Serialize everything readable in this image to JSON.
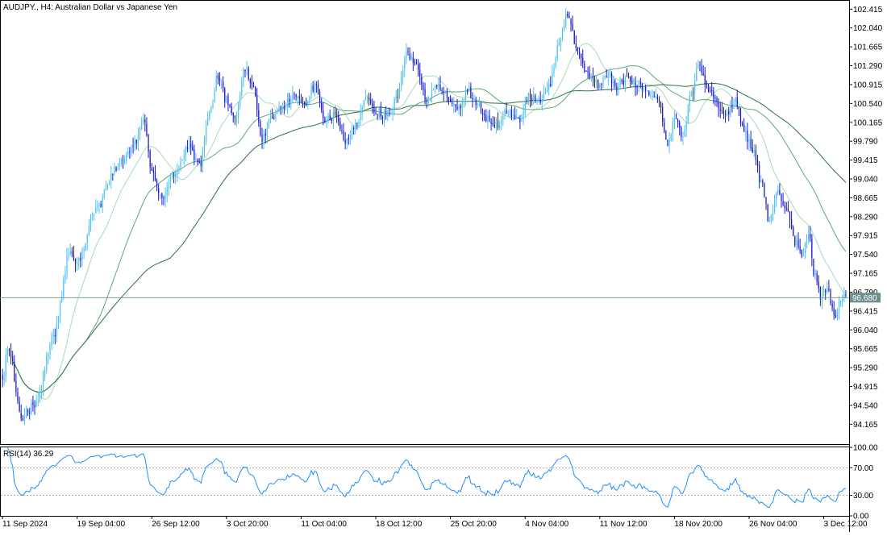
{
  "chart_data": {
    "type": "candlestick",
    "title": "AUDJPY., H4:  Australian Dollar vs Japanese Yen",
    "price_axis": {
      "ticks": [
        "102.415",
        "102.040",
        "101.665",
        "101.290",
        "100.915",
        "100.540",
        "100.165",
        "99.790",
        "99.415",
        "99.040",
        "98.665",
        "98.290",
        "97.915",
        "97.540",
        "97.165",
        "96.790",
        "96.415",
        "96.040",
        "95.665",
        "95.290",
        "94.915",
        "94.540",
        "94.165"
      ],
      "ylim": [
        93.77,
        102.58
      ]
    },
    "current_price": "96.680",
    "time_axis": {
      "ticks": [
        "11 Sep 2024",
        "19 Sep 04:00",
        "26 Sep 12:00",
        "3 Oct 20:00",
        "11 Oct 04:00",
        "18 Oct 12:00",
        "25 Oct 20:00",
        "4 Nov 04:00",
        "11 Nov 12:00",
        "18 Nov 20:00",
        "26 Nov 04:00",
        "3 Dec 12:00"
      ],
      "tick_bars": [
        0,
        44,
        88,
        132,
        176,
        220,
        264,
        308,
        352,
        396,
        440,
        484
      ]
    },
    "bar_count": 498,
    "anchors": [
      [
        0,
        95.0
      ],
      [
        3,
        95.7
      ],
      [
        12,
        94.3
      ],
      [
        20,
        94.6
      ],
      [
        30,
        95.9
      ],
      [
        40,
        97.6
      ],
      [
        44,
        97.4
      ],
      [
        55,
        98.4
      ],
      [
        66,
        99.2
      ],
      [
        77,
        99.7
      ],
      [
        83,
        100.2
      ],
      [
        88,
        99.2
      ],
      [
        94,
        98.6
      ],
      [
        100,
        99.1
      ],
      [
        110,
        99.7
      ],
      [
        116,
        99.3
      ],
      [
        122,
        100.3
      ],
      [
        127,
        101.1
      ],
      [
        132,
        100.6
      ],
      [
        137,
        100.2
      ],
      [
        143,
        101.2
      ],
      [
        148,
        100.8
      ],
      [
        153,
        99.8
      ],
      [
        158,
        100.2
      ],
      [
        165,
        100.5
      ],
      [
        172,
        100.7
      ],
      [
        178,
        100.5
      ],
      [
        184,
        100.9
      ],
      [
        190,
        100.2
      ],
      [
        196,
        100.3
      ],
      [
        202,
        99.8
      ],
      [
        208,
        100.1
      ],
      [
        214,
        100.6
      ],
      [
        220,
        100.4
      ],
      [
        226,
        100.3
      ],
      [
        232,
        100.6
      ],
      [
        238,
        101.5
      ],
      [
        244,
        101.3
      ],
      [
        250,
        100.6
      ],
      [
        256,
        100.9
      ],
      [
        262,
        100.7
      ],
      [
        268,
        100.4
      ],
      [
        274,
        100.8
      ],
      [
        280,
        100.5
      ],
      [
        286,
        100.2
      ],
      [
        292,
        100.1
      ],
      [
        298,
        100.4
      ],
      [
        304,
        100.2
      ],
      [
        310,
        100.7
      ],
      [
        316,
        100.6
      ],
      [
        322,
        100.9
      ],
      [
        328,
        101.7
      ],
      [
        333,
        102.3
      ],
      [
        338,
        101.7
      ],
      [
        344,
        101.1
      ],
      [
        350,
        100.9
      ],
      [
        356,
        101.1
      ],
      [
        362,
        100.9
      ],
      [
        368,
        101.0
      ],
      [
        374,
        100.9
      ],
      [
        380,
        100.8
      ],
      [
        386,
        100.6
      ],
      [
        392,
        99.7
      ],
      [
        396,
        100.3
      ],
      [
        401,
        99.9
      ],
      [
        406,
        100.7
      ],
      [
        410,
        101.3
      ],
      [
        415,
        100.9
      ],
      [
        420,
        100.6
      ],
      [
        426,
        100.3
      ],
      [
        432,
        100.6
      ],
      [
        437,
        100.0
      ],
      [
        442,
        99.6
      ],
      [
        447,
        99.0
      ],
      [
        452,
        98.2
      ],
      [
        457,
        98.8
      ],
      [
        462,
        98.4
      ],
      [
        467,
        97.8
      ],
      [
        471,
        97.5
      ],
      [
        475,
        97.9
      ],
      [
        479,
        97.1
      ],
      [
        482,
        96.7
      ],
      [
        486,
        96.9
      ],
      [
        490,
        96.3
      ],
      [
        494,
        96.6
      ],
      [
        497,
        96.7
      ]
    ],
    "moving_averages": [
      {
        "period": 20,
        "color": "#a8dcb4"
      },
      {
        "period": 50,
        "color": "#5aaa72"
      },
      {
        "period": 100,
        "color": "#2e7048"
      }
    ],
    "candle_colors": {
      "bull": "#4fc3f7",
      "bear": "#1a1acd"
    },
    "rsi": {
      "label": "RSI(14) 36.29",
      "period": 14,
      "ticks": [
        "100.00",
        "70.00",
        "30.00",
        "0.00"
      ],
      "levels": [
        70,
        30
      ],
      "ylim": [
        0,
        100
      ],
      "color": "#1e90ff"
    }
  }
}
